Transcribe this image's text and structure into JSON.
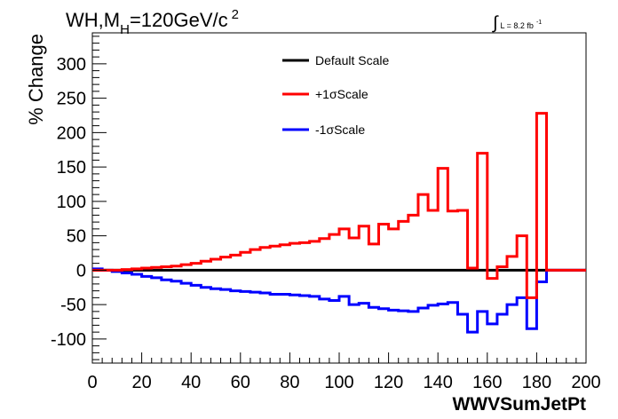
{
  "chart_data": {
    "type": "line",
    "step": true,
    "title": {
      "prefix": "WH,M",
      "subscript": "H",
      "mid": "=120GeV/c",
      "superscript": "2"
    },
    "lumi": {
      "integral_sign": "∫",
      "label": "L = 8.2 fb",
      "superscript": "-1"
    },
    "xlabel": "WWVSumJetPt",
    "ylabel": "% Change",
    "xlim": [
      0,
      200
    ],
    "ylim": [
      -135,
      345
    ],
    "xticks": [
      0,
      20,
      40,
      60,
      80,
      100,
      120,
      140,
      160,
      180,
      200
    ],
    "yticks": [
      -100,
      -50,
      0,
      50,
      100,
      150,
      200,
      250,
      300
    ],
    "bin_width": 4,
    "legend_position": "top-center",
    "series": [
      {
        "name": "Default Scale",
        "color": "#000000",
        "values": [
          0,
          0,
          0,
          0,
          0,
          0,
          0,
          0,
          0,
          0,
          0,
          0,
          0,
          0,
          0,
          0,
          0,
          0,
          0,
          0,
          0,
          0,
          0,
          0,
          0,
          0,
          0,
          0,
          0,
          0,
          0,
          0,
          0,
          0,
          0,
          0,
          0,
          0,
          0,
          0,
          0,
          0,
          0,
          0,
          0,
          0,
          0,
          0,
          0,
          0
        ]
      },
      {
        "name": "+1σScale",
        "color": "#ff0000",
        "values": [
          0,
          0,
          0,
          1,
          2,
          3,
          4,
          5,
          6,
          8,
          10,
          13,
          16,
          19,
          22,
          26,
          30,
          33,
          35,
          37,
          39,
          40,
          42,
          46,
          52,
          60,
          47,
          64,
          38,
          67,
          60,
          71,
          80,
          110,
          87,
          148,
          86,
          87,
          3,
          170,
          -12,
          5,
          20,
          50,
          -40,
          228,
          0,
          0,
          0,
          0
        ]
      },
      {
        "name": "-1σScale",
        "color": "#0000ff",
        "values": [
          2,
          0,
          -2,
          -4,
          -6,
          -9,
          -11,
          -14,
          -16,
          -19,
          -22,
          -25,
          -27,
          -28,
          -30,
          -31,
          -32,
          -33,
          -35,
          -35,
          -36,
          -37,
          -38,
          -42,
          -44,
          -38,
          -50,
          -48,
          -54,
          -56,
          -58,
          -59,
          -60,
          -55,
          -51,
          -49,
          -47,
          -64,
          -90,
          -60,
          -78,
          -64,
          -50,
          -40,
          -85,
          -17,
          0,
          0,
          0,
          0
        ]
      }
    ]
  }
}
